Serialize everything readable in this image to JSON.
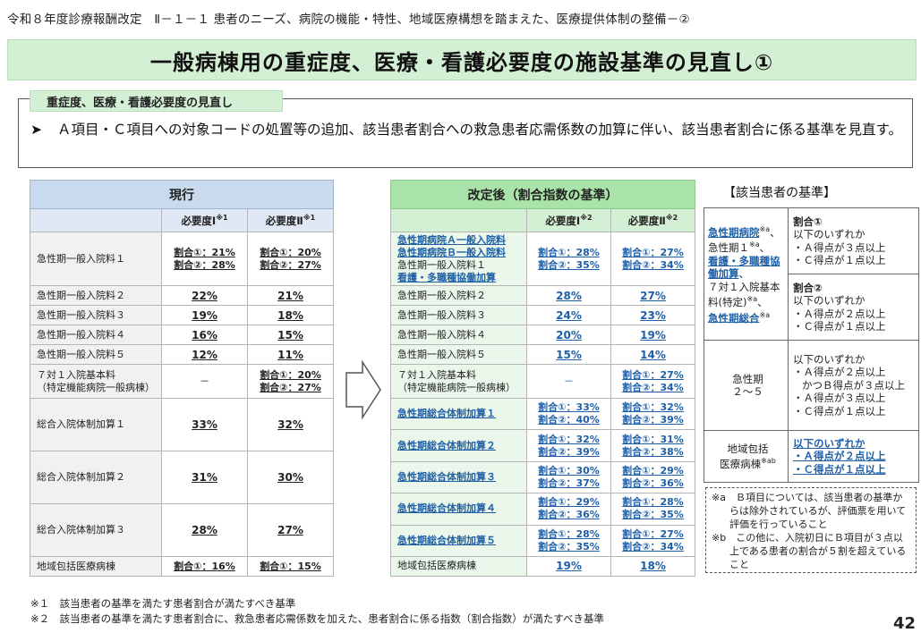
{
  "header": "令和８年度診療報酬改定　Ⅱ－１－１ 患者のニーズ、病院の機能・特性、地域医療構想を踏まえた、医療提供体制の整備－②",
  "title": "一般病棟用の重症度、医療・看護必要度の施設基準の見直し①",
  "revision": {
    "label": "重症度、医療・看護必要度の見直し",
    "bullet": "➤",
    "text": "Ａ項目・Ｃ項目への対象コードの処置等の追加、該当患者割合への救急患者応需係数の加算に伴い、該当患者割合に係る基準を見直す。"
  },
  "current": {
    "header": "現行",
    "col1": "必要度Ⅰ",
    "col1_mark": "※1",
    "col2": "必要度Ⅱ",
    "col2_mark": "※1",
    "rows": [
      {
        "label": "急性期一般入院料１",
        "v1a": "割合①：21%",
        "v1b": "割合②：28%",
        "v2a": "割合①：20%",
        "v2b": "割合②：27%"
      },
      {
        "label": "急性期一般入院料２",
        "v1": "22%",
        "v2": "21%"
      },
      {
        "label": "急性期一般入院料３",
        "v1": "19%",
        "v2": "18%"
      },
      {
        "label": "急性期一般入院料４",
        "v1": "16%",
        "v2": "15%"
      },
      {
        "label": "急性期一般入院料５",
        "v1": "12%",
        "v2": "11%"
      },
      {
        "label1": "７対１入院基本料",
        "label2": "（特定機能病院一般病棟）",
        "v1": "－",
        "v2a": "割合①：20%",
        "v2b": "割合②：27%"
      },
      {
        "label": "総合入院体制加算１",
        "v1": "33%",
        "v2": "32%"
      },
      {
        "label": "総合入院体制加算２",
        "v1": "31%",
        "v2": "30%"
      },
      {
        "label": "総合入院体制加算３",
        "v1": "28%",
        "v2": "27%"
      },
      {
        "label": "地域包括医療病棟",
        "v1": "割合①：16%",
        "v2": "割合①：15%"
      }
    ]
  },
  "revised": {
    "header": "改定後（割合指数の基準）",
    "col1": "必要度Ⅰ",
    "col1_mark": "※2",
    "col2": "必要度Ⅱ",
    "col2_mark": "※2",
    "row1_labels": [
      "急性期病院Ａ一般入院料",
      "急性期病院Ｂ一般入院料",
      "急性期一般入院料１",
      "看護・多職種協働加算"
    ],
    "rows": [
      {
        "v1a": "割合①：28%",
        "v1b": "割合②：35%",
        "v2a": "割合①：27%",
        "v2b": "割合②：34%"
      },
      {
        "label": "急性期一般入院料２",
        "v1": "28%",
        "v2": "27%"
      },
      {
        "label": "急性期一般入院料３",
        "v1": "24%",
        "v2": "23%"
      },
      {
        "label": "急性期一般入院料４",
        "v1": "20%",
        "v2": "19%"
      },
      {
        "label": "急性期一般入院料５",
        "v1": "15%",
        "v2": "14%"
      },
      {
        "label1": "７対１入院基本料",
        "label2": "（特定機能病院一般病棟）",
        "v1": "－",
        "v2a": "割合①：27%",
        "v2b": "割合②：34%"
      },
      {
        "label": "急性期総合体制加算１",
        "v1a": "割合①：33%",
        "v1b": "割合②：40%",
        "v2a": "割合①：32%",
        "v2b": "割合②：39%"
      },
      {
        "label": "急性期総合体制加算２",
        "v1a": "割合①：32%",
        "v1b": "割合②：39%",
        "v2a": "割合①：31%",
        "v2b": "割合②：38%"
      },
      {
        "label": "急性期総合体制加算３",
        "v1a": "割合①：30%",
        "v1b": "割合②：37%",
        "v2a": "割合①：29%",
        "v2b": "割合②：36%"
      },
      {
        "label": "急性期総合体制加算４",
        "v1a": "割合①：29%",
        "v1b": "割合②：36%",
        "v2a": "割合①：28%",
        "v2b": "割合②：35%"
      },
      {
        "label": "急性期総合体制加算５",
        "v1a": "割合①：28%",
        "v1b": "割合②：35%",
        "v2a": "割合①：27%",
        "v2b": "割合②：34%"
      },
      {
        "label": "地域包括医療病棟",
        "v1": "19%",
        "v2": "18%"
      }
    ]
  },
  "criteria": {
    "title": "【該当患者の基準】",
    "group1": {
      "l1": "急性期病院",
      "m1": "※a",
      "s1": "、",
      "l2": "急性期１",
      "m2": "※a",
      "s2": "、",
      "l3": "看護・多職種協働加算",
      "s3": "、",
      "l4": "７対１入院基本料(特定)",
      "m4": "※a",
      "s4": "、",
      "l5": "急性期総合",
      "m5": "※a"
    },
    "ratio1": {
      "title": "割合①",
      "line1": "以下のいずれか",
      "line2": "・Ａ得点が３点以上",
      "line3": "・Ｃ得点が１点以上"
    },
    "ratio2": {
      "title": "割合②",
      "line1": "以下のいずれか",
      "line2": "・Ａ得点が２点以上",
      "line3": "・Ｃ得点が１点以上"
    },
    "group2": {
      "l1": "急性期",
      "l2": "２～５"
    },
    "ratio3": {
      "line1": "以下のいずれか",
      "line2": "・Ａ得点が２点以上",
      "line3": "かつＢ得点が３点以上",
      "line4": "・Ａ得点が３点以上",
      "line5": "・Ｃ得点が１点以上"
    },
    "group3": {
      "l1": "地域包括",
      "l2": "医療病棟",
      "m2": "※ab"
    },
    "ratio4": {
      "line1": "以下のいずれか",
      "line2": "・Ａ得点が２点以上",
      "line3": "・Ｃ得点が１点以上"
    }
  },
  "notes": {
    "a": "※a　Ｂ項目については、該当患者の基準からは除外されているが、評価票を用いて評価を行っていること",
    "b": "※b　この他に、入院初日にＢ項目が３点以上である患者の割合が５割を超えていること"
  },
  "footnotes": {
    "f1": "※１　該当患者の基準を満たす患者割合が満たすべき基準",
    "f2": "※２　該当患者の基準を満たす患者割合に、救急患者応需係数を加えた、患者割合に係る指数（割合指数）が満たすべき基準"
  },
  "page_number": "42",
  "colors": {
    "title_band": "#d4f0d4",
    "current_header": "#c9d9ee",
    "revised_header": "#a9e3a9",
    "link_blue": "#1f5fa6"
  }
}
